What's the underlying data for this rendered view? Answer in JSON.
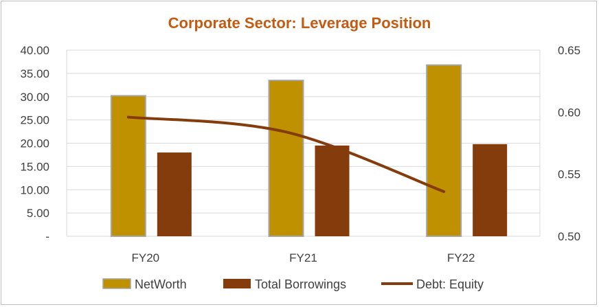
{
  "chart_data": {
    "type": "bar",
    "title": "Corporate Sector: Leverage Position",
    "categories": [
      "FY20",
      "FY21",
      "FY22"
    ],
    "series": [
      {
        "name": "NetWorth",
        "type": "bar",
        "axis": "left",
        "color": "#bf9000",
        "values": [
          30.2,
          33.5,
          36.8
        ]
      },
      {
        "name": "Total Borrowings",
        "type": "bar",
        "axis": "left",
        "color": "#843c0c",
        "values": [
          18.0,
          19.5,
          19.8
        ]
      },
      {
        "name": "Debt: Equity",
        "type": "line",
        "axis": "right",
        "color": "#843c0c",
        "values": [
          0.596,
          0.584,
          0.536
        ]
      }
    ],
    "y_left": {
      "min": 0,
      "max": 40,
      "ticks": [
        "-",
        "5.00",
        "10.00",
        "15.00",
        "20.00",
        "25.00",
        "30.00",
        "35.00",
        "40.00"
      ]
    },
    "y_right": {
      "min": 0.5,
      "max": 0.65,
      "ticks": [
        "0.50",
        "0.55",
        "0.60",
        "0.65"
      ]
    },
    "grid": true,
    "legend_position": "bottom"
  }
}
